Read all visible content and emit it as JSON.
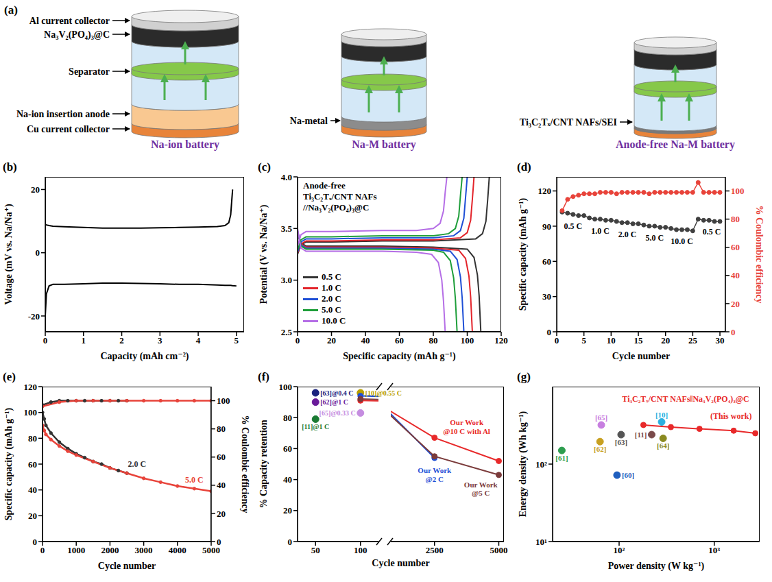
{
  "diagram": {
    "label": "(a)",
    "batteries": [
      {
        "title": "Na-ion battery",
        "labels": [
          "Al current collector",
          "Na₃V₂(PO₄)₃@C",
          "Separator",
          "Na-ion insertion anode",
          "Cu current collector"
        ]
      },
      {
        "title": "Na-M battery",
        "labels": [
          "Na-metal"
        ]
      },
      {
        "title": "Anode-free Na-M battery",
        "labels": [
          "Ti₃C₂Tₓ/CNT NAFs/SEI"
        ]
      }
    ]
  },
  "chart_data": [
    {
      "panel": "(b)",
      "type": "line",
      "xlabel": "Capacity (mAh cm⁻²)",
      "ylabel": "Voltage (mV vs. Na/Na⁺)",
      "x": [
        0,
        0.03,
        0.1,
        0.2,
        0.5,
        1,
        1.5,
        2,
        2.5,
        3,
        3.5,
        4,
        4.5,
        4.7,
        4.8,
        4.85,
        4.9,
        5
      ],
      "xlim": [
        0,
        5.2
      ],
      "xticks": [
        0,
        1,
        2,
        3,
        4,
        5
      ],
      "ylim": [
        -25,
        24
      ],
      "yticks": [
        -20,
        0,
        20
      ],
      "series": [
        {
          "color": "#000000",
          "values": [
            9,
            8.8,
            8.6,
            8.4,
            8.2,
            8,
            7.8,
            7.8,
            7.8,
            7.9,
            8,
            8.1,
            8.3,
            8.6,
            9.5,
            12,
            20,
            null
          ]
        },
        {
          "color": "#000000",
          "values": [
            -20,
            -13,
            -10.5,
            -10,
            -10,
            -9.8,
            -9.6,
            -9.6,
            -9.7,
            -9.8,
            -10,
            -10,
            -10.2,
            -10.3,
            -10.3,
            -10.3,
            -10.4,
            -10.5
          ]
        }
      ]
    },
    {
      "panel": "(c)",
      "type": "line",
      "xlabel": "Specific capacity (mAh g⁻¹)",
      "ylabel": "Potential (V vs. Na/Na⁺)",
      "annotation": [
        "Anode-free",
        "Ti₃C₂Tₓ/CNT NAFs",
        "//Na₃V₂(PO₄)₃@C"
      ],
      "xlim": [
        0,
        120
      ],
      "xticks": [
        0,
        20,
        40,
        60,
        80,
        100,
        120
      ],
      "ylim": [
        2.5,
        4
      ],
      "yticks": [
        2.5,
        {
          "value": 3,
          "label": "3.0"
        },
        3.5,
        {
          "value": 4,
          "label": "4.0"
        }
      ],
      "legend": "lower left",
      "series": [
        {
          "name": "0.5 C",
          "color": "#333333",
          "charge": {
            "x": [
              0,
              2,
              5,
              20,
              50,
              80,
              105,
              109,
              111,
              112,
              113
            ],
            "values": [
              3.25,
              3.34,
              3.37,
              3.37,
              3.38,
              3.38,
              3.4,
              3.45,
              3.57,
              3.77,
              4.0
            ]
          },
          "discharge": {
            "x": [
              0,
              2,
              5,
              20,
              50,
              80,
              100,
              104,
              106,
              107,
              108
            ],
            "values": [
              3.45,
              3.36,
              3.33,
              3.33,
              3.33,
              3.32,
              3.3,
              3.22,
              3.05,
              2.85,
              2.5
            ]
          }
        },
        {
          "name": "1.0 C",
          "color": "#e3242b",
          "charge": {
            "x": [
              0,
              2,
              5,
              20,
              50,
              80,
              96,
              100,
              102,
              103,
              104
            ],
            "values": [
              3.26,
              3.35,
              3.38,
              3.38,
              3.39,
              3.39,
              3.41,
              3.46,
              3.58,
              3.78,
              4.0
            ]
          },
          "discharge": {
            "x": [
              0,
              2,
              5,
              20,
              50,
              80,
              95,
              99,
              101,
              102,
              103
            ],
            "values": [
              3.46,
              3.35,
              3.32,
              3.32,
              3.32,
              3.31,
              3.29,
              3.21,
              3.04,
              2.84,
              2.5
            ]
          }
        },
        {
          "name": "2.0 C",
          "color": "#1f4fd6",
          "charge": {
            "x": [
              0,
              2,
              5,
              20,
              50,
              80,
              92,
              96,
              98,
              99,
              100
            ],
            "values": [
              3.27,
              3.37,
              3.4,
              3.4,
              3.41,
              3.41,
              3.43,
              3.48,
              3.6,
              3.8,
              4.0
            ]
          },
          "discharge": {
            "x": [
              0,
              2,
              5,
              20,
              50,
              80,
              90,
              94,
              96,
              97,
              98
            ],
            "values": [
              3.47,
              3.34,
              3.31,
              3.31,
              3.31,
              3.3,
              3.28,
              3.2,
              3.03,
              2.83,
              2.5
            ]
          }
        },
        {
          "name": "5.0 C",
          "color": "#1e9e3a",
          "charge": {
            "x": [
              0,
              2,
              5,
              20,
              50,
              80,
              89,
              93,
              95,
              96,
              97
            ],
            "values": [
              3.29,
              3.39,
              3.42,
              3.42,
              3.43,
              3.43,
              3.45,
              3.5,
              3.62,
              3.82,
              4.0
            ]
          },
          "discharge": {
            "x": [
              0,
              2,
              5,
              20,
              50,
              80,
              86,
              90,
              92,
              93,
              94
            ],
            "values": [
              3.48,
              3.33,
              3.3,
              3.3,
              3.3,
              3.29,
              3.27,
              3.19,
              3.02,
              2.82,
              2.5
            ]
          }
        },
        {
          "name": "10.0 C",
          "color": "#b56ee6",
          "charge": {
            "x": [
              0,
              2,
              5,
              20,
              50,
              70,
              80,
              84,
              86,
              87,
              88
            ],
            "values": [
              3.33,
              3.44,
              3.47,
              3.47,
              3.48,
              3.48,
              3.5,
              3.55,
              3.67,
              3.85,
              4.0
            ]
          },
          "discharge": {
            "x": [
              0,
              2,
              5,
              20,
              50,
              70,
              79,
              83,
              85,
              86,
              87
            ],
            "values": [
              3.5,
              3.31,
              3.28,
              3.28,
              3.28,
              3.27,
              3.25,
              3.17,
              3.0,
              2.8,
              2.5
            ]
          }
        }
      ]
    },
    {
      "panel": "(d)",
      "type": "line",
      "xlabel": "Cycle number",
      "ylabel": "Specific capacity (mAh g⁻¹)",
      "y2label": "% Coulombic efficiency",
      "x": [
        1,
        2,
        3,
        4,
        5,
        6,
        7,
        8,
        9,
        10,
        11,
        12,
        13,
        14,
        15,
        16,
        17,
        18,
        19,
        20,
        21,
        22,
        23,
        24,
        25,
        26,
        27,
        28,
        29,
        30
      ],
      "xlim": [
        0,
        31
      ],
      "xticks": [
        0,
        5,
        10,
        15,
        20,
        25,
        30
      ],
      "ylim": [
        0,
        132
      ],
      "yticks": [
        0,
        30,
        60,
        90,
        120
      ],
      "y2lim": [
        0,
        110
      ],
      "y2ticks": [
        0,
        20,
        40,
        60,
        80,
        100
      ],
      "series": [
        {
          "color": "#404040",
          "marker": "circle",
          "values": [
            102,
            101,
            100,
            99,
            99,
            97,
            96,
            96,
            95,
            95,
            94,
            93,
            93,
            92,
            92,
            91,
            90,
            90,
            89,
            89,
            88,
            87,
            87,
            87,
            86,
            96,
            95,
            95,
            94,
            94
          ]
        },
        {
          "color": "#e8433a",
          "marker": "circle",
          "axis": "y2",
          "values": [
            86,
            94,
            96,
            97,
            98,
            98,
            98,
            99,
            99,
            99,
            98,
            99,
            99,
            99,
            99,
            99,
            98,
            99,
            99,
            99,
            99,
            99,
            99,
            99,
            99,
            106,
            99,
            99,
            99,
            99
          ]
        }
      ],
      "annotations": [
        {
          "text": "0.5 C",
          "x": 3,
          "y": 90,
          "color": "#000000"
        },
        {
          "text": "1.0 C",
          "x": 8,
          "y": 86,
          "color": "#000000"
        },
        {
          "text": "2.0 C",
          "x": 13,
          "y": 83,
          "color": "#000000"
        },
        {
          "text": "5.0 C",
          "x": 18,
          "y": 80,
          "color": "#000000"
        },
        {
          "text": "10.0 C",
          "x": 23,
          "y": 77,
          "color": "#000000"
        },
        {
          "text": "0.5 C",
          "x": 28.5,
          "y": 85,
          "color": "#000000"
        }
      ]
    },
    {
      "panel": "(e)",
      "type": "line",
      "xlabel": "Cycle number",
      "ylabel": "Specific capacity (mAh g⁻¹)",
      "y2label": "% Coulombic efficiency",
      "xlim": [
        0,
        5000
      ],
      "xticks": [
        0,
        1000,
        2000,
        3000,
        4000,
        5000
      ],
      "ylim": [
        0,
        120
      ],
      "yticks": [
        0,
        20,
        40,
        60,
        80,
        100,
        120
      ],
      "y2lim": [
        0,
        110
      ],
      "y2ticks": [
        0,
        20,
        40,
        60,
        80,
        100
      ],
      "series": [
        {
          "color": "#333333",
          "marker": "circle",
          "x": [
            0,
            50,
            100,
            250,
            500,
            750,
            1000,
            1250,
            1500,
            1750,
            2000,
            2250,
            2500
          ],
          "values": [
            100,
            95,
            90,
            84,
            77,
            72,
            68,
            65,
            62,
            60,
            57,
            55,
            53
          ]
        },
        {
          "color": "#e8433a",
          "marker": "circle",
          "x": [
            0,
            50,
            100,
            250,
            500,
            750,
            1000,
            1500,
            2000,
            2500,
            3000,
            3500,
            4000,
            4500,
            5000
          ],
          "values": [
            90,
            86,
            83,
            79,
            74,
            70,
            67,
            62,
            57,
            53,
            49,
            46,
            43,
            41,
            39
          ]
        },
        {
          "color": "#333333",
          "marker": "circle",
          "axis": "y2",
          "x": [
            0,
            250,
            500,
            750,
            1000,
            1250,
            1500,
            1750,
            2000,
            2250,
            2500
          ],
          "values": [
            97,
            99,
            100,
            100,
            100,
            100,
            100,
            100,
            100,
            100,
            100
          ]
        },
        {
          "color": "#e8433a",
          "marker": "circle",
          "axis": "y2",
          "x": [
            0,
            500,
            1000,
            1500,
            2000,
            2500,
            3000,
            3500,
            4000,
            4500,
            5000
          ],
          "values": [
            96,
            99,
            100,
            100,
            100,
            100,
            100,
            100,
            100,
            100,
            100
          ]
        }
      ],
      "annotations": [
        {
          "text": "2.0 C",
          "x": 2800,
          "y": 60,
          "color": "#333333"
        },
        {
          "text": "5.0 C",
          "x": 4500,
          "y": 48,
          "color": "#e8433a"
        }
      ]
    },
    {
      "panel": "(f)",
      "type": "line",
      "xlabel": "Cycle number",
      "ylabel": "% Capacity retention",
      "xlim": [
        30,
        5200
      ],
      "x_break": [
        120,
        800
      ],
      "xticks": [
        50,
        100,
        2500,
        5000
      ],
      "ylim": [
        0,
        100
      ],
      "yticks": [
        0,
        20,
        40,
        60,
        80,
        100
      ],
      "series": [
        {
          "name": "[63]@0.4 C",
          "type": "scatter",
          "color": "#1a237e",
          "x": [
            50
          ],
          "values": [
            96
          ]
        },
        {
          "name": "[62]@1 C",
          "type": "scatter",
          "color": "#6a1b9a",
          "x": [
            50
          ],
          "values": [
            90
          ]
        },
        {
          "name": "[11]@1 C",
          "type": "scatter",
          "color": "#1b7a33",
          "x": [
            50
          ],
          "values": [
            79
          ]
        },
        {
          "name": "[10]@0.55 C",
          "type": "scatter",
          "color": "#b8a000",
          "x": [
            100
          ],
          "values": [
            96
          ]
        },
        {
          "name": "[65]@0.33 C",
          "type": "scatter",
          "color": "#c58de0",
          "x": [
            100
          ],
          "values": [
            83
          ]
        },
        {
          "color": "#e8292a",
          "marker": "circle",
          "x": [
            100,
            2500,
            5000
          ],
          "values": [
            91,
            67,
            52
          ]
        },
        {
          "color": "#1f4fd6",
          "marker": "circle",
          "x": [
            100,
            2500
          ],
          "values": [
            94,
            54
          ]
        },
        {
          "color": "#7b3b3b",
          "marker": "circle",
          "x": [
            100,
            2500,
            5000
          ],
          "values": [
            92,
            55,
            43
          ]
        }
      ],
      "annotations": [
        {
          "text": "Our Work @10 C with Al",
          "x": 3750,
          "y": 74,
          "color": "#e8292a"
        },
        {
          "text": "Our Work @2 C",
          "x": 2500,
          "y": 43,
          "color": "#1f4fd6"
        },
        {
          "text": "Our Work @5 C",
          "x": 4300,
          "y": 34,
          "color": "#7b3b3b"
        }
      ]
    },
    {
      "panel": "(g)",
      "type": "scatter",
      "log": true,
      "xlabel": "Power density (W kg⁻¹)",
      "ylabel": "Energy density (Wh kg⁻¹)",
      "xlim": [
        20,
        3000
      ],
      "xticks": [
        {
          "value": 100,
          "label": "10²"
        },
        {
          "value": 1000,
          "label": "10³"
        }
      ],
      "ylim": [
        10,
        1000
      ],
      "yticks": [
        {
          "value": 10,
          "label": "10¹"
        },
        {
          "value": 100,
          "label": "10²"
        }
      ],
      "series": [
        {
          "name": "[61]",
          "color": "#2e9e4f",
          "x": [
            25
          ],
          "values": [
            150
          ]
        },
        {
          "name": "[60]",
          "color": "#1f5fbf",
          "x": [
            95
          ],
          "values": [
            72
          ]
        },
        {
          "name": "[62]",
          "color": "#c8a020",
          "x": [
            63
          ],
          "values": [
            195
          ]
        },
        {
          "name": "[65]",
          "color": "#c77ee0",
          "x": [
            65
          ],
          "values": [
            320
          ]
        },
        {
          "name": "[63]",
          "color": "#555555",
          "x": [
            105
          ],
          "values": [
            240
          ]
        },
        {
          "name": "[10]",
          "color": "#2ab0e0",
          "x": [
            280
          ],
          "values": [
            350
          ]
        },
        {
          "name": "[11]",
          "color": "#7a4a4a",
          "x": [
            220
          ],
          "values": [
            240
          ]
        },
        {
          "name": "[64]",
          "color": "#8a8a20",
          "x": [
            290
          ],
          "values": [
            215
          ]
        },
        {
          "type": "line",
          "marker": "circle",
          "color": "#e8292a",
          "x": [
            180,
            350,
            700,
            1600,
            2700
          ],
          "values": [
            320,
            300,
            285,
            270,
            250
          ]
        }
      ],
      "annotations": [
        {
          "text": "Ti₃C₂Tₓ/CNT NAFs‖Na₃V₂(PO₄)₃@C",
          "x": 500,
          "y": 700,
          "color": "#e8292a"
        },
        {
          "text": "(This work)",
          "x": 1500,
          "y": 420,
          "color": "#e8292a"
        }
      ]
    }
  ]
}
